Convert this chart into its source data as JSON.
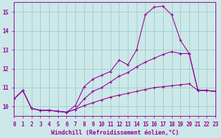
{
  "xlabel": "Windchill (Refroidissement éolien,°C)",
  "bg_color": "#cce8e8",
  "grid_color": "#99cccc",
  "line_color": "#990099",
  "line1_y": [
    10.4,
    10.85,
    9.9,
    9.8,
    9.8,
    9.75,
    9.7,
    9.85,
    10.05,
    10.2,
    10.35,
    10.5,
    10.6,
    10.7,
    10.8,
    10.9,
    11.0,
    11.05,
    11.1,
    11.15,
    11.2,
    10.85,
    10.85,
    10.8
  ],
  "line2_y": [
    10.4,
    10.85,
    9.9,
    9.8,
    9.8,
    9.75,
    9.7,
    9.85,
    10.4,
    10.8,
    11.0,
    11.3,
    11.6,
    11.8,
    12.1,
    12.35,
    12.55,
    12.75,
    12.9,
    12.8,
    12.8,
    10.85,
    10.85,
    10.8
  ],
  "line3_y": [
    10.4,
    10.85,
    9.9,
    9.8,
    9.8,
    9.75,
    9.7,
    10.05,
    11.05,
    11.45,
    11.65,
    11.85,
    12.45,
    12.2,
    13.0,
    14.85,
    15.25,
    15.3,
    14.85,
    13.5,
    12.8,
    10.85,
    10.85,
    10.8
  ],
  "xlim": [
    0,
    23
  ],
  "ylim": [
    9.5,
    15.5
  ],
  "xticks": [
    0,
    1,
    2,
    3,
    4,
    5,
    6,
    7,
    8,
    9,
    10,
    11,
    12,
    13,
    14,
    15,
    16,
    17,
    18,
    19,
    20,
    21,
    22,
    23
  ],
  "yticks": [
    10,
    11,
    12,
    13,
    14,
    15
  ],
  "xlabel_fontsize": 6.0,
  "tick_fontsize": 5.5,
  "marker": "+"
}
